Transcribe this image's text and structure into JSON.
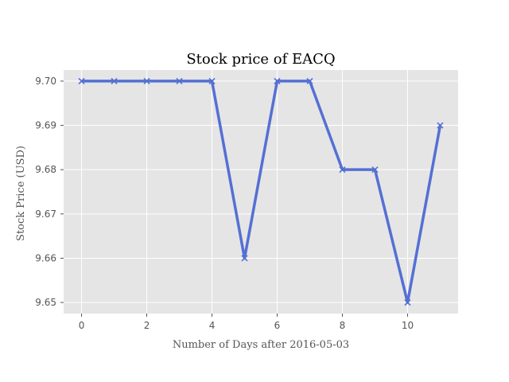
{
  "chart_data": {
    "type": "line",
    "title": "Stock price of EACQ",
    "xlabel": "Number of Days after 2016-05-03",
    "ylabel": "Stock Price (USD)",
    "x": [
      0,
      1,
      2,
      3,
      4,
      5,
      6,
      7,
      8,
      9,
      10,
      11
    ],
    "series": [
      {
        "values": [
          9.7,
          9.7,
          9.7,
          9.7,
          9.7,
          9.66,
          9.7,
          9.7,
          9.68,
          9.68,
          9.65,
          9.69
        ],
        "color": "#5470d4",
        "marker": "x"
      }
    ],
    "xlim": [
      -0.55,
      11.55
    ],
    "ylim": [
      9.6475,
      9.7025
    ],
    "xticks": [
      0,
      2,
      4,
      6,
      8,
      10
    ],
    "xtick_labels": [
      "0",
      "2",
      "4",
      "6",
      "8",
      "10"
    ],
    "yticks": [
      9.65,
      9.66,
      9.67,
      9.68,
      9.69,
      9.7
    ],
    "ytick_labels": [
      "9.65",
      "9.66",
      "9.67",
      "9.68",
      "9.69",
      "9.70"
    ],
    "grid": true,
    "style": "ggplot"
  }
}
